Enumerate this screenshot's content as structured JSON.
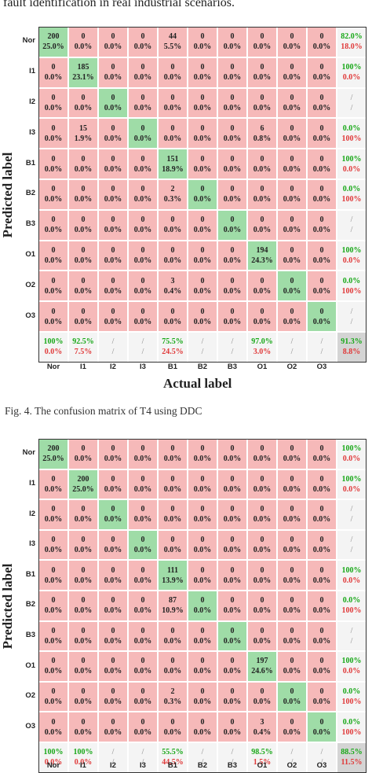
{
  "page": {
    "top_text": "fault identification in real industrial scenarios.",
    "caption": "Fig. 4. The confusion matrix of T4 using DDC"
  },
  "colors": {
    "correct_cell": "#9fdca7",
    "error_cell": "#f6b9b9",
    "summary_cell": "#f4f4f4",
    "overall_cell": "#d4d4d4",
    "good_text": "#18a818",
    "bad_text": "#e03a3a"
  },
  "chart_data": [
    {
      "type": "heatmap",
      "xlabel": "Actual label",
      "ylabel": "Predicted label",
      "row_labels": [
        "Nor",
        "I1",
        "I2",
        "I3",
        "B1",
        "B2",
        "B3",
        "O1",
        "O2",
        "O3"
      ],
      "col_labels": [
        "Nor",
        "I1",
        "I2",
        "I3",
        "B1",
        "B2",
        "B3",
        "O1",
        "O2",
        "O3"
      ],
      "counts": [
        [
          200,
          0,
          0,
          0,
          44,
          0,
          0,
          0,
          0,
          0
        ],
        [
          0,
          185,
          0,
          0,
          0,
          0,
          0,
          0,
          0,
          0
        ],
        [
          0,
          0,
          0,
          0,
          0,
          0,
          0,
          0,
          0,
          0
        ],
        [
          0,
          15,
          0,
          0,
          0,
          0,
          0,
          6,
          0,
          0
        ],
        [
          0,
          0,
          0,
          0,
          151,
          0,
          0,
          0,
          0,
          0
        ],
        [
          0,
          0,
          0,
          0,
          2,
          0,
          0,
          0,
          0,
          0
        ],
        [
          0,
          0,
          0,
          0,
          0,
          0,
          0,
          0,
          0,
          0
        ],
        [
          0,
          0,
          0,
          0,
          0,
          0,
          0,
          194,
          0,
          0
        ],
        [
          0,
          0,
          0,
          0,
          3,
          0,
          0,
          0,
          0,
          0
        ],
        [
          0,
          0,
          0,
          0,
          0,
          0,
          0,
          0,
          0,
          0
        ]
      ],
      "percents": [
        [
          "25.0%",
          "0.0%",
          "0.0%",
          "0.0%",
          "5.5%",
          "0.0%",
          "0.0%",
          "0.0%",
          "0.0%",
          "0.0%"
        ],
        [
          "0.0%",
          "23.1%",
          "0.0%",
          "0.0%",
          "0.0%",
          "0.0%",
          "0.0%",
          "0.0%",
          "0.0%",
          "0.0%"
        ],
        [
          "0.0%",
          "0.0%",
          "0.0%",
          "0.0%",
          "0.0%",
          "0.0%",
          "0.0%",
          "0.0%",
          "0.0%",
          "0.0%"
        ],
        [
          "0.0%",
          "1.9%",
          "0.0%",
          "0.0%",
          "0.0%",
          "0.0%",
          "0.0%",
          "0.8%",
          "0.0%",
          "0.0%"
        ],
        [
          "0.0%",
          "0.0%",
          "0.0%",
          "0.0%",
          "18.9%",
          "0.0%",
          "0.0%",
          "0.0%",
          "0.0%",
          "0.0%"
        ],
        [
          "0.0%",
          "0.0%",
          "0.0%",
          "0.0%",
          "0.3%",
          "0.0%",
          "0.0%",
          "0.0%",
          "0.0%",
          "0.0%"
        ],
        [
          "0.0%",
          "0.0%",
          "0.0%",
          "0.0%",
          "0.0%",
          "0.0%",
          "0.0%",
          "0.0%",
          "0.0%",
          "0.0%"
        ],
        [
          "0.0%",
          "0.0%",
          "0.0%",
          "0.0%",
          "0.0%",
          "0.0%",
          "0.0%",
          "24.3%",
          "0.0%",
          "0.0%"
        ],
        [
          "0.0%",
          "0.0%",
          "0.0%",
          "0.0%",
          "0.4%",
          "0.0%",
          "0.0%",
          "0.0%",
          "0.0%",
          "0.0%"
        ],
        [
          "0.0%",
          "0.0%",
          "0.0%",
          "0.0%",
          "0.0%",
          "0.0%",
          "0.0%",
          "0.0%",
          "0.0%",
          "0.0%"
        ]
      ],
      "row_summary": [
        [
          "82.0%",
          "18.0%"
        ],
        [
          "100%",
          "0.0%"
        ],
        [
          "/",
          "/"
        ],
        [
          "0.0%",
          "100%"
        ],
        [
          "100%",
          "0.0%"
        ],
        [
          "0.0%",
          "100%"
        ],
        [
          "/",
          "/"
        ],
        [
          "100%",
          "0.0%"
        ],
        [
          "0.0%",
          "100%"
        ],
        [
          "/",
          "/"
        ]
      ],
      "col_summary": [
        [
          "100%",
          "0.0%"
        ],
        [
          "92.5%",
          "7.5%"
        ],
        [
          "/",
          "/"
        ],
        [
          "/",
          "/"
        ],
        [
          "75.5%",
          "24.5%"
        ],
        [
          "/",
          "/"
        ],
        [
          "/",
          "/"
        ],
        [
          "97.0%",
          "3.0%"
        ],
        [
          "/",
          "/"
        ],
        [
          "/",
          "/"
        ]
      ],
      "overall": [
        "91.3%",
        "8.8%"
      ]
    },
    {
      "type": "heatmap",
      "xlabel": "",
      "ylabel": "Predicted label",
      "row_labels": [
        "Nor",
        "I1",
        "I2",
        "I3",
        "B1",
        "B2",
        "B3",
        "O1",
        "O2",
        "O3"
      ],
      "col_labels": [
        "Nor",
        "I1",
        "I2",
        "I3",
        "B1",
        "B2",
        "B3",
        "O1",
        "O2",
        "O3"
      ],
      "counts": [
        [
          200,
          0,
          0,
          0,
          0,
          0,
          0,
          0,
          0,
          0
        ],
        [
          0,
          200,
          0,
          0,
          0,
          0,
          0,
          0,
          0,
          0
        ],
        [
          0,
          0,
          0,
          0,
          0,
          0,
          0,
          0,
          0,
          0
        ],
        [
          0,
          0,
          0,
          0,
          0,
          0,
          0,
          0,
          0,
          0
        ],
        [
          0,
          0,
          0,
          0,
          111,
          0,
          0,
          0,
          0,
          0
        ],
        [
          0,
          0,
          0,
          0,
          87,
          0,
          0,
          0,
          0,
          0
        ],
        [
          0,
          0,
          0,
          0,
          0,
          0,
          0,
          0,
          0,
          0
        ],
        [
          0,
          0,
          0,
          0,
          0,
          0,
          0,
          197,
          0,
          0
        ],
        [
          0,
          0,
          0,
          0,
          2,
          0,
          0,
          0,
          0,
          0
        ],
        [
          0,
          0,
          0,
          0,
          0,
          0,
          0,
          3,
          0,
          0
        ]
      ],
      "percents": [
        [
          "25.0%",
          "0.0%",
          "0.0%",
          "0.0%",
          "0.0%",
          "0.0%",
          "0.0%",
          "0.0%",
          "0.0%",
          "0.0%"
        ],
        [
          "0.0%",
          "25.0%",
          "0.0%",
          "0.0%",
          "0.0%",
          "0.0%",
          "0.0%",
          "0.0%",
          "0.0%",
          "0.0%"
        ],
        [
          "0.0%",
          "0.0%",
          "0.0%",
          "0.0%",
          "0.0%",
          "0.0%",
          "0.0%",
          "0.0%",
          "0.0%",
          "0.0%"
        ],
        [
          "0.0%",
          "0.0%",
          "0.0%",
          "0.0%",
          "0.0%",
          "0.0%",
          "0.0%",
          "0.0%",
          "0.0%",
          "0.0%"
        ],
        [
          "0.0%",
          "0.0%",
          "0.0%",
          "0.0%",
          "13.9%",
          "0.0%",
          "0.0%",
          "0.0%",
          "0.0%",
          "0.0%"
        ],
        [
          "0.0%",
          "0.0%",
          "0.0%",
          "0.0%",
          "10.9%",
          "0.0%",
          "0.0%",
          "0.0%",
          "0.0%",
          "0.0%"
        ],
        [
          "0.0%",
          "0.0%",
          "0.0%",
          "0.0%",
          "0.0%",
          "0.0%",
          "0.0%",
          "0.0%",
          "0.0%",
          "0.0%"
        ],
        [
          "0.0%",
          "0.0%",
          "0.0%",
          "0.0%",
          "0.0%",
          "0.0%",
          "0.0%",
          "24.6%",
          "0.0%",
          "0.0%"
        ],
        [
          "0.0%",
          "0.0%",
          "0.0%",
          "0.0%",
          "0.3%",
          "0.0%",
          "0.0%",
          "0.0%",
          "0.0%",
          "0.0%"
        ],
        [
          "0.0%",
          "0.0%",
          "0.0%",
          "0.0%",
          "0.0%",
          "0.0%",
          "0.0%",
          "0.4%",
          "0.0%",
          "0.0%"
        ]
      ],
      "row_summary": [
        [
          "100%",
          "0.0%"
        ],
        [
          "100%",
          "0.0%"
        ],
        [
          "/",
          "/"
        ],
        [
          "/",
          "/"
        ],
        [
          "100%",
          "0.0%"
        ],
        [
          "0.0%",
          "100%"
        ],
        [
          "/",
          "/"
        ],
        [
          "100%",
          "0.0%"
        ],
        [
          "0.0%",
          "100%"
        ],
        [
          "0.0%",
          "100%"
        ]
      ],
      "col_summary": [
        [
          "100%",
          "0.0%"
        ],
        [
          "100%",
          "0.0%"
        ],
        [
          "/",
          "/"
        ],
        [
          "/",
          "/"
        ],
        [
          "55.5%",
          "44.5%"
        ],
        [
          "/",
          "/"
        ],
        [
          "/",
          "/"
        ],
        [
          "98.5%",
          "1.5%"
        ],
        [
          "/",
          "/"
        ],
        [
          "/",
          "/"
        ]
      ],
      "overall": [
        "88.5%",
        "11.5%"
      ]
    }
  ]
}
